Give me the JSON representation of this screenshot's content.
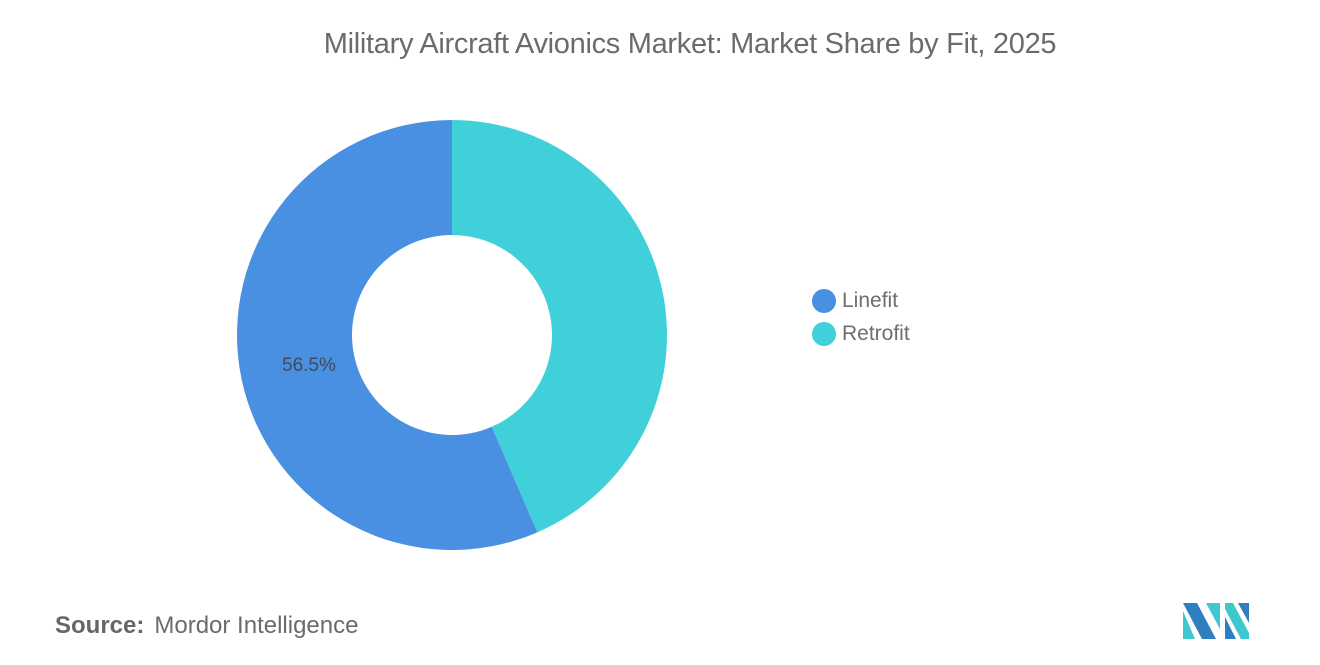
{
  "title": "Military Aircraft Avionics Market: Market Share by Fit, 2025",
  "legend": {
    "items": [
      {
        "label": "Linefit",
        "color": "#4a90e2"
      },
      {
        "label": "Retrofit",
        "color": "#40d0da"
      }
    ]
  },
  "slice_labels": {
    "linefit": "56.5%"
  },
  "source": {
    "key": "Source:",
    "value": "Mordor Intelligence"
  },
  "logo": {
    "name": "mordor-intelligence-logo",
    "colors": [
      "#2e7fbf",
      "#3ec7cf"
    ]
  },
  "chart_data": {
    "type": "pie",
    "variant": "donut",
    "title": "Military Aircraft Avionics Market: Market Share by Fit, 2025",
    "categories": [
      "Linefit",
      "Retrofit"
    ],
    "values": [
      56.5,
      43.5
    ],
    "colors": [
      "#4a90e2",
      "#40d0da"
    ],
    "data_labels": [
      "56.5%",
      ""
    ],
    "legend_position": "right",
    "xlabel": "",
    "ylabel": ""
  }
}
